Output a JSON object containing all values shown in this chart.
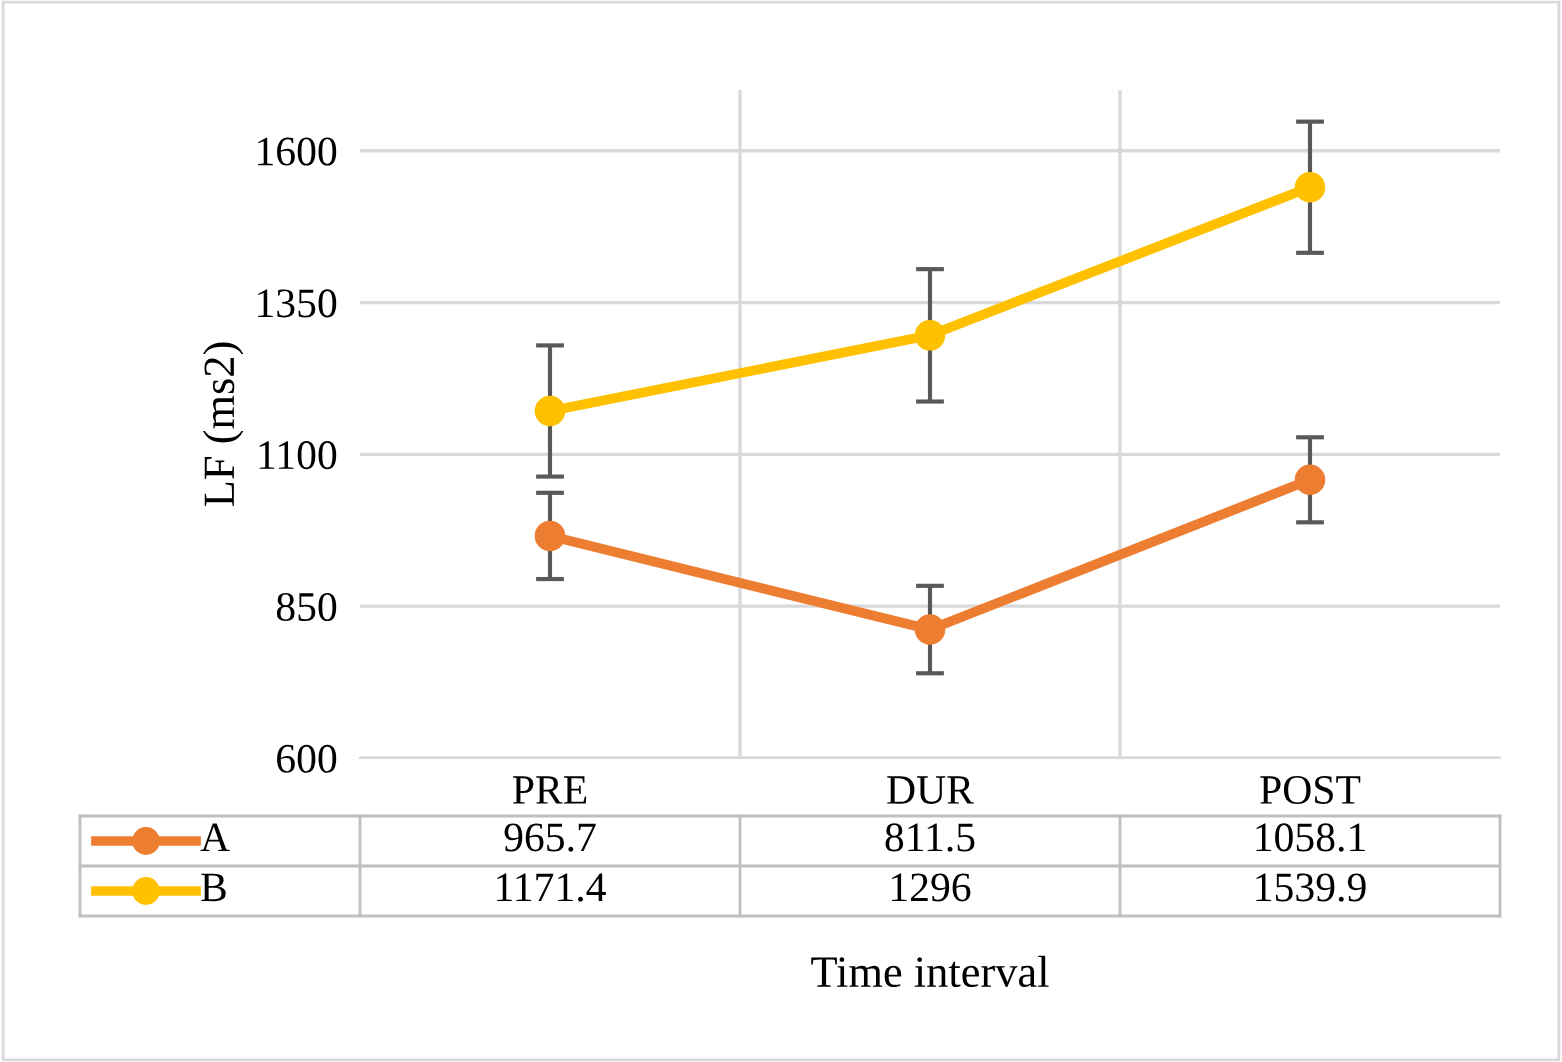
{
  "chart_data": {
    "type": "line",
    "xlabel": "Time interval",
    "ylabel": "LF (ms2)",
    "categories": [
      "PRE",
      "DUR",
      "POST"
    ],
    "series": [
      {
        "name": "A",
        "color": "#ed7d31",
        "values": [
          965.7,
          811.5,
          1058.1
        ],
        "errors": [
          71,
          72,
          70
        ]
      },
      {
        "name": "B",
        "color": "#ffc000",
        "values": [
          1171.4,
          1296,
          1539.9
        ],
        "errors": [
          108,
          109,
          108
        ]
      }
    ],
    "ylim": [
      600,
      1700
    ],
    "yticks": [
      600,
      850,
      1100,
      1350,
      1600
    ],
    "grid": true,
    "legend": "bottom",
    "marker": "circle",
    "line_style": "solid",
    "data_labels": true
  }
}
